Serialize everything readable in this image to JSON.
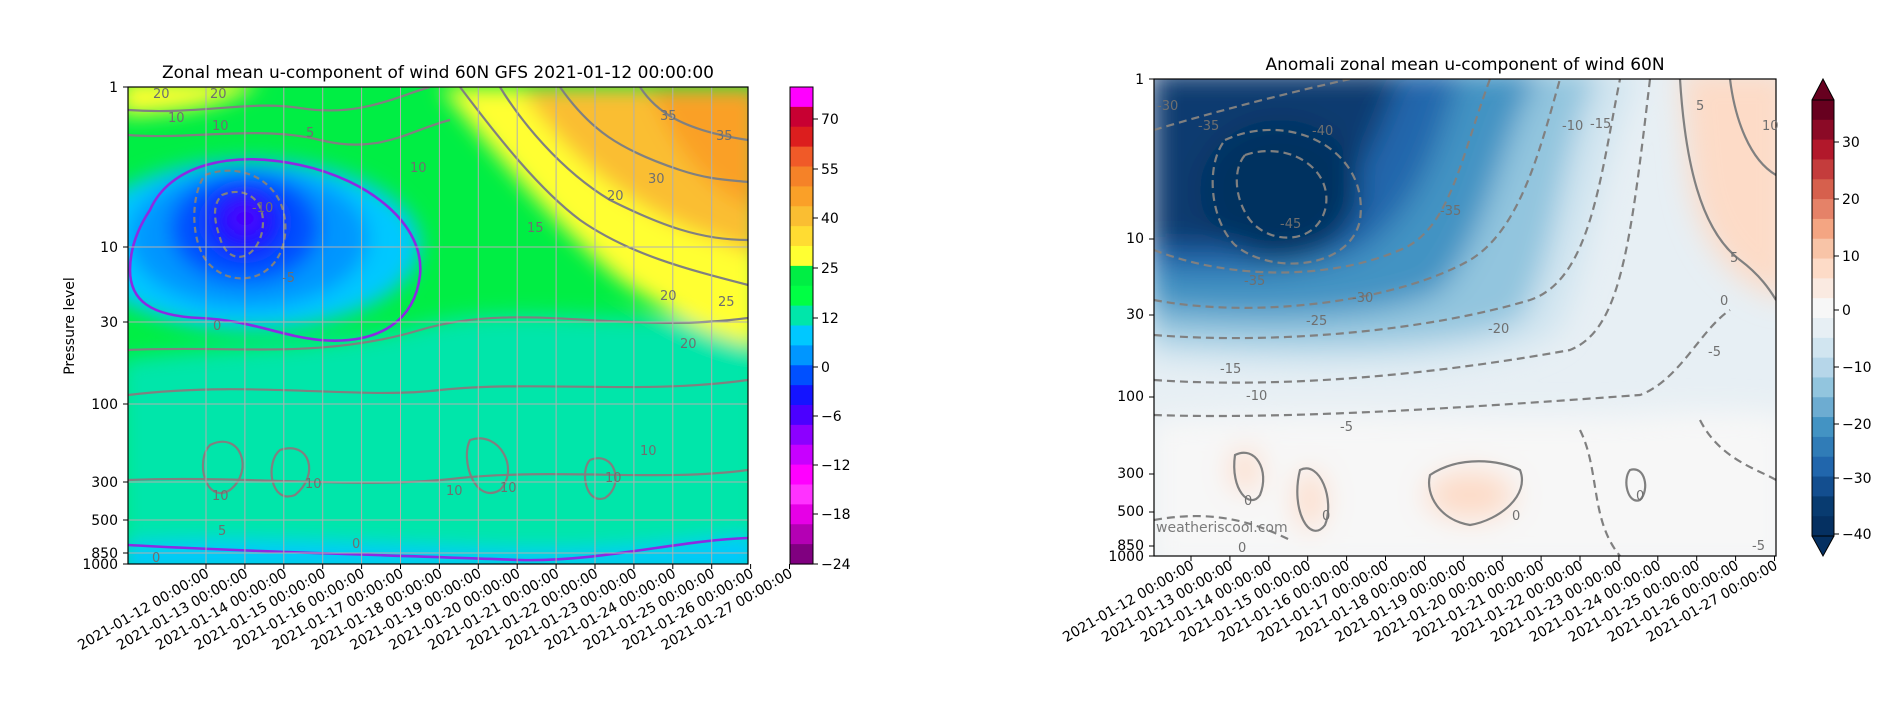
{
  "chart_data": [
    {
      "type": "heatmap",
      "title": "Zonal mean u-component of wind 60N GFS 2021-01-12 00:00:00",
      "xlabel": "",
      "ylabel": "Pressure level",
      "x_ticks": [
        "2021-01-12 00:00:00",
        "2021-01-13 00:00:00",
        "2021-01-14 00:00:00",
        "2021-01-15 00:00:00",
        "2021-01-16 00:00:00",
        "2021-01-17 00:00:00",
        "2021-01-18 00:00:00",
        "2021-01-19 00:00:00",
        "2021-01-20 00:00:00",
        "2021-01-21 00:00:00",
        "2021-01-22 00:00:00",
        "2021-01-23 00:00:00",
        "2021-01-24 00:00:00",
        "2021-01-25 00:00:00",
        "2021-01-26 00:00:00",
        "2021-01-27 00:00:00"
      ],
      "y_ticks": [
        "1",
        "10",
        "30",
        "100",
        "300",
        "500",
        "850",
        "1000"
      ],
      "y_scale": "log-reversed",
      "colorbar": {
        "ticks": [
          "70",
          "55",
          "40",
          "25",
          "12",
          "0",
          "−6",
          "−12",
          "−18",
          "−24"
        ],
        "colors": [
          "#ff00ff",
          "#c80032",
          "#dc1e1e",
          "#f05a28",
          "#f58228",
          "#faa028",
          "#fabe32",
          "#ffdc32",
          "#ffff32",
          "#00ee44",
          "#00ff44",
          "#00e6aa",
          "#00c8ff",
          "#0096ff",
          "#0050ff",
          "#1414ff",
          "#4b00ff",
          "#8c00ff",
          "#c800ff",
          "#ff00ff",
          "#ff32ff",
          "#e600e6",
          "#b400b4",
          "#800080"
        ]
      },
      "contour_labels": [
        "20",
        "20",
        "10",
        "5",
        "10",
        "10",
        "-10",
        "-5",
        "0",
        "15",
        "20",
        "30",
        "35",
        "35",
        "20",
        "20",
        "25",
        "10",
        "10",
        "10",
        "10",
        "10",
        "10",
        "5",
        "0",
        "0"
      ],
      "grid": true
    },
    {
      "type": "heatmap",
      "title": "Anomali zonal mean u-component of wind 60N",
      "xlabel": "",
      "ylabel": "",
      "x_ticks": [
        "2021-01-12 00:00:00",
        "2021-01-13 00:00:00",
        "2021-01-14 00:00:00",
        "2021-01-15 00:00:00",
        "2021-01-16 00:00:00",
        "2021-01-17 00:00:00",
        "2021-01-18 00:00:00",
        "2021-01-19 00:00:00",
        "2021-01-20 00:00:00",
        "2021-01-21 00:00:00",
        "2021-01-22 00:00:00",
        "2021-01-23 00:00:00",
        "2021-01-24 00:00:00",
        "2021-01-25 00:00:00",
        "2021-01-26 00:00:00",
        "2021-01-27 00:00:00"
      ],
      "y_ticks": [
        "1",
        "10",
        "30",
        "100",
        "300",
        "500",
        "850",
        "1000"
      ],
      "y_scale": "log-reversed",
      "colorbar": {
        "ticks": [
          "30",
          "20",
          "10",
          "0",
          "−10",
          "−20",
          "−30",
          "−40"
        ],
        "colors": [
          "#67001f",
          "#8b0a26",
          "#b2182b",
          "#c43c3c",
          "#d6604d",
          "#e58268",
          "#f4a582",
          "#f8c4a7",
          "#fddbc7",
          "#faeae1",
          "#f7f7f7",
          "#e7eff4",
          "#d1e5f0",
          "#b6d6e9",
          "#92c5de",
          "#6dacd1",
          "#4393c3",
          "#307cb7",
          "#2166ac",
          "#134e8f",
          "#083b70",
          "#053061"
        ]
      },
      "contour_labels": [
        "-30",
        "-35",
        "-40",
        "-45",
        "-35",
        "-30",
        "-25",
        "-15",
        "-10",
        "-5",
        "-20",
        "-10",
        "-15",
        "-35",
        "5",
        "10",
        "5",
        "0",
        "-5",
        "0",
        "0",
        "0",
        "0",
        "0",
        "-5"
      ],
      "grid": false,
      "watermark": "weatheriscool.com"
    }
  ]
}
